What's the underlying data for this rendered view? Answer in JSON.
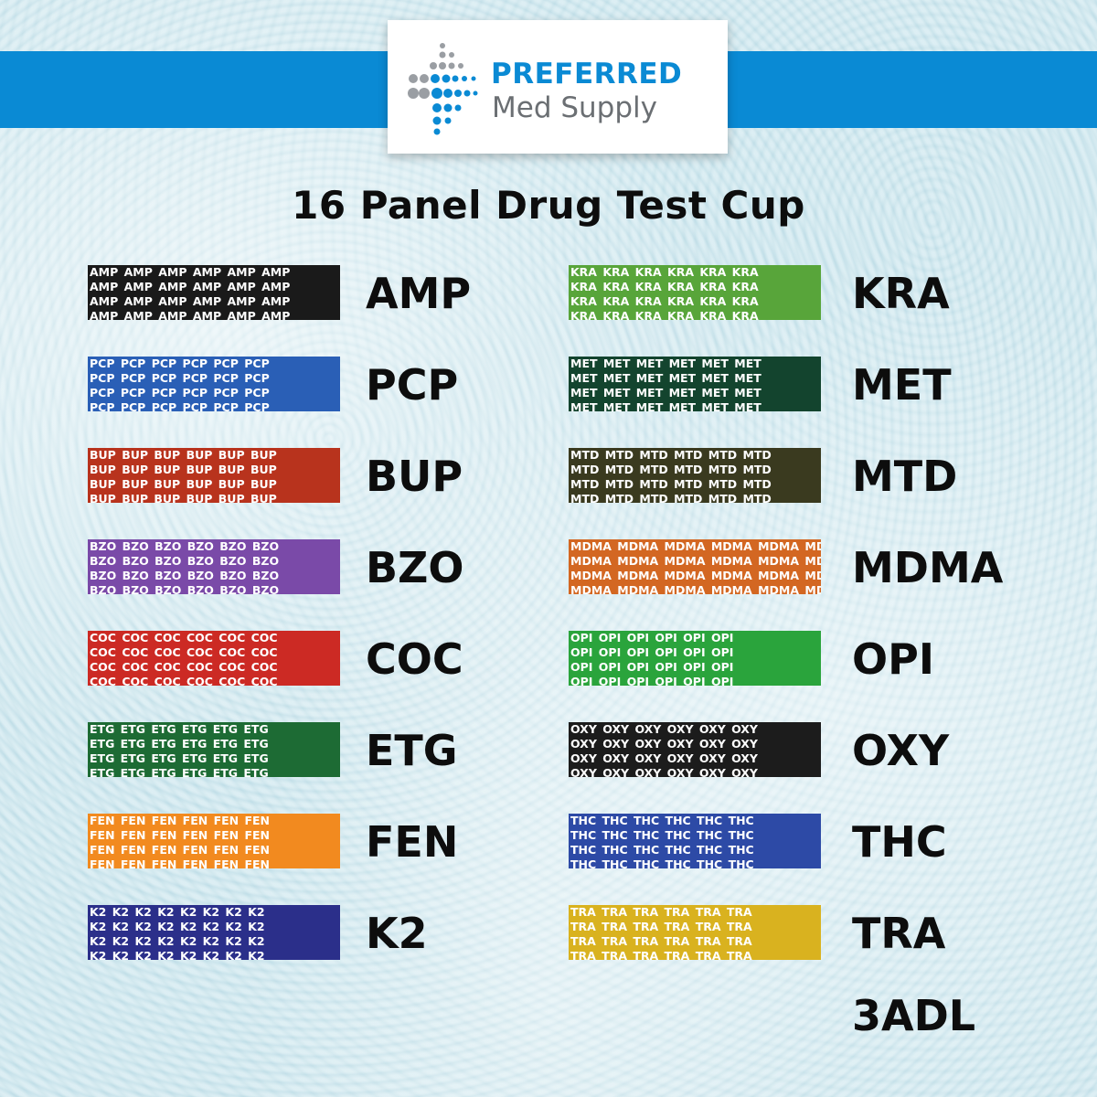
{
  "brand": {
    "name_line1": "PREFERRED",
    "name_line2": "Med Supply",
    "primary_color": "#0a8ad4",
    "secondary_color": "#6b6f73"
  },
  "title": "16 Panel Drug Test Cup",
  "left_panels": [
    {
      "code": "AMP",
      "color": "#1a1a1a"
    },
    {
      "code": "PCP",
      "color": "#2a5fb6"
    },
    {
      "code": "BUP",
      "color": "#b8331d"
    },
    {
      "code": "BZO",
      "color": "#7a4aa8"
    },
    {
      "code": "COC",
      "color": "#cc2a24"
    },
    {
      "code": "ETG",
      "color": "#1d6b34"
    },
    {
      "code": "FEN",
      "color": "#f28a1f"
    },
    {
      "code": "K2",
      "color": "#2b2f8a"
    }
  ],
  "right_panels": [
    {
      "code": "KRA",
      "color": "#58a53a"
    },
    {
      "code": "MET",
      "color": "#13442e"
    },
    {
      "code": "MTD",
      "color": "#3a3a1f"
    },
    {
      "code": "MDMA",
      "color": "#d36722"
    },
    {
      "code": "OPI",
      "color": "#2aa43c"
    },
    {
      "code": "OXY",
      "color": "#1c1c1c"
    },
    {
      "code": "THC",
      "color": "#2d4aa6"
    },
    {
      "code": "TRA",
      "color": "#d9b21f"
    }
  ],
  "extra_label": "3ADL"
}
